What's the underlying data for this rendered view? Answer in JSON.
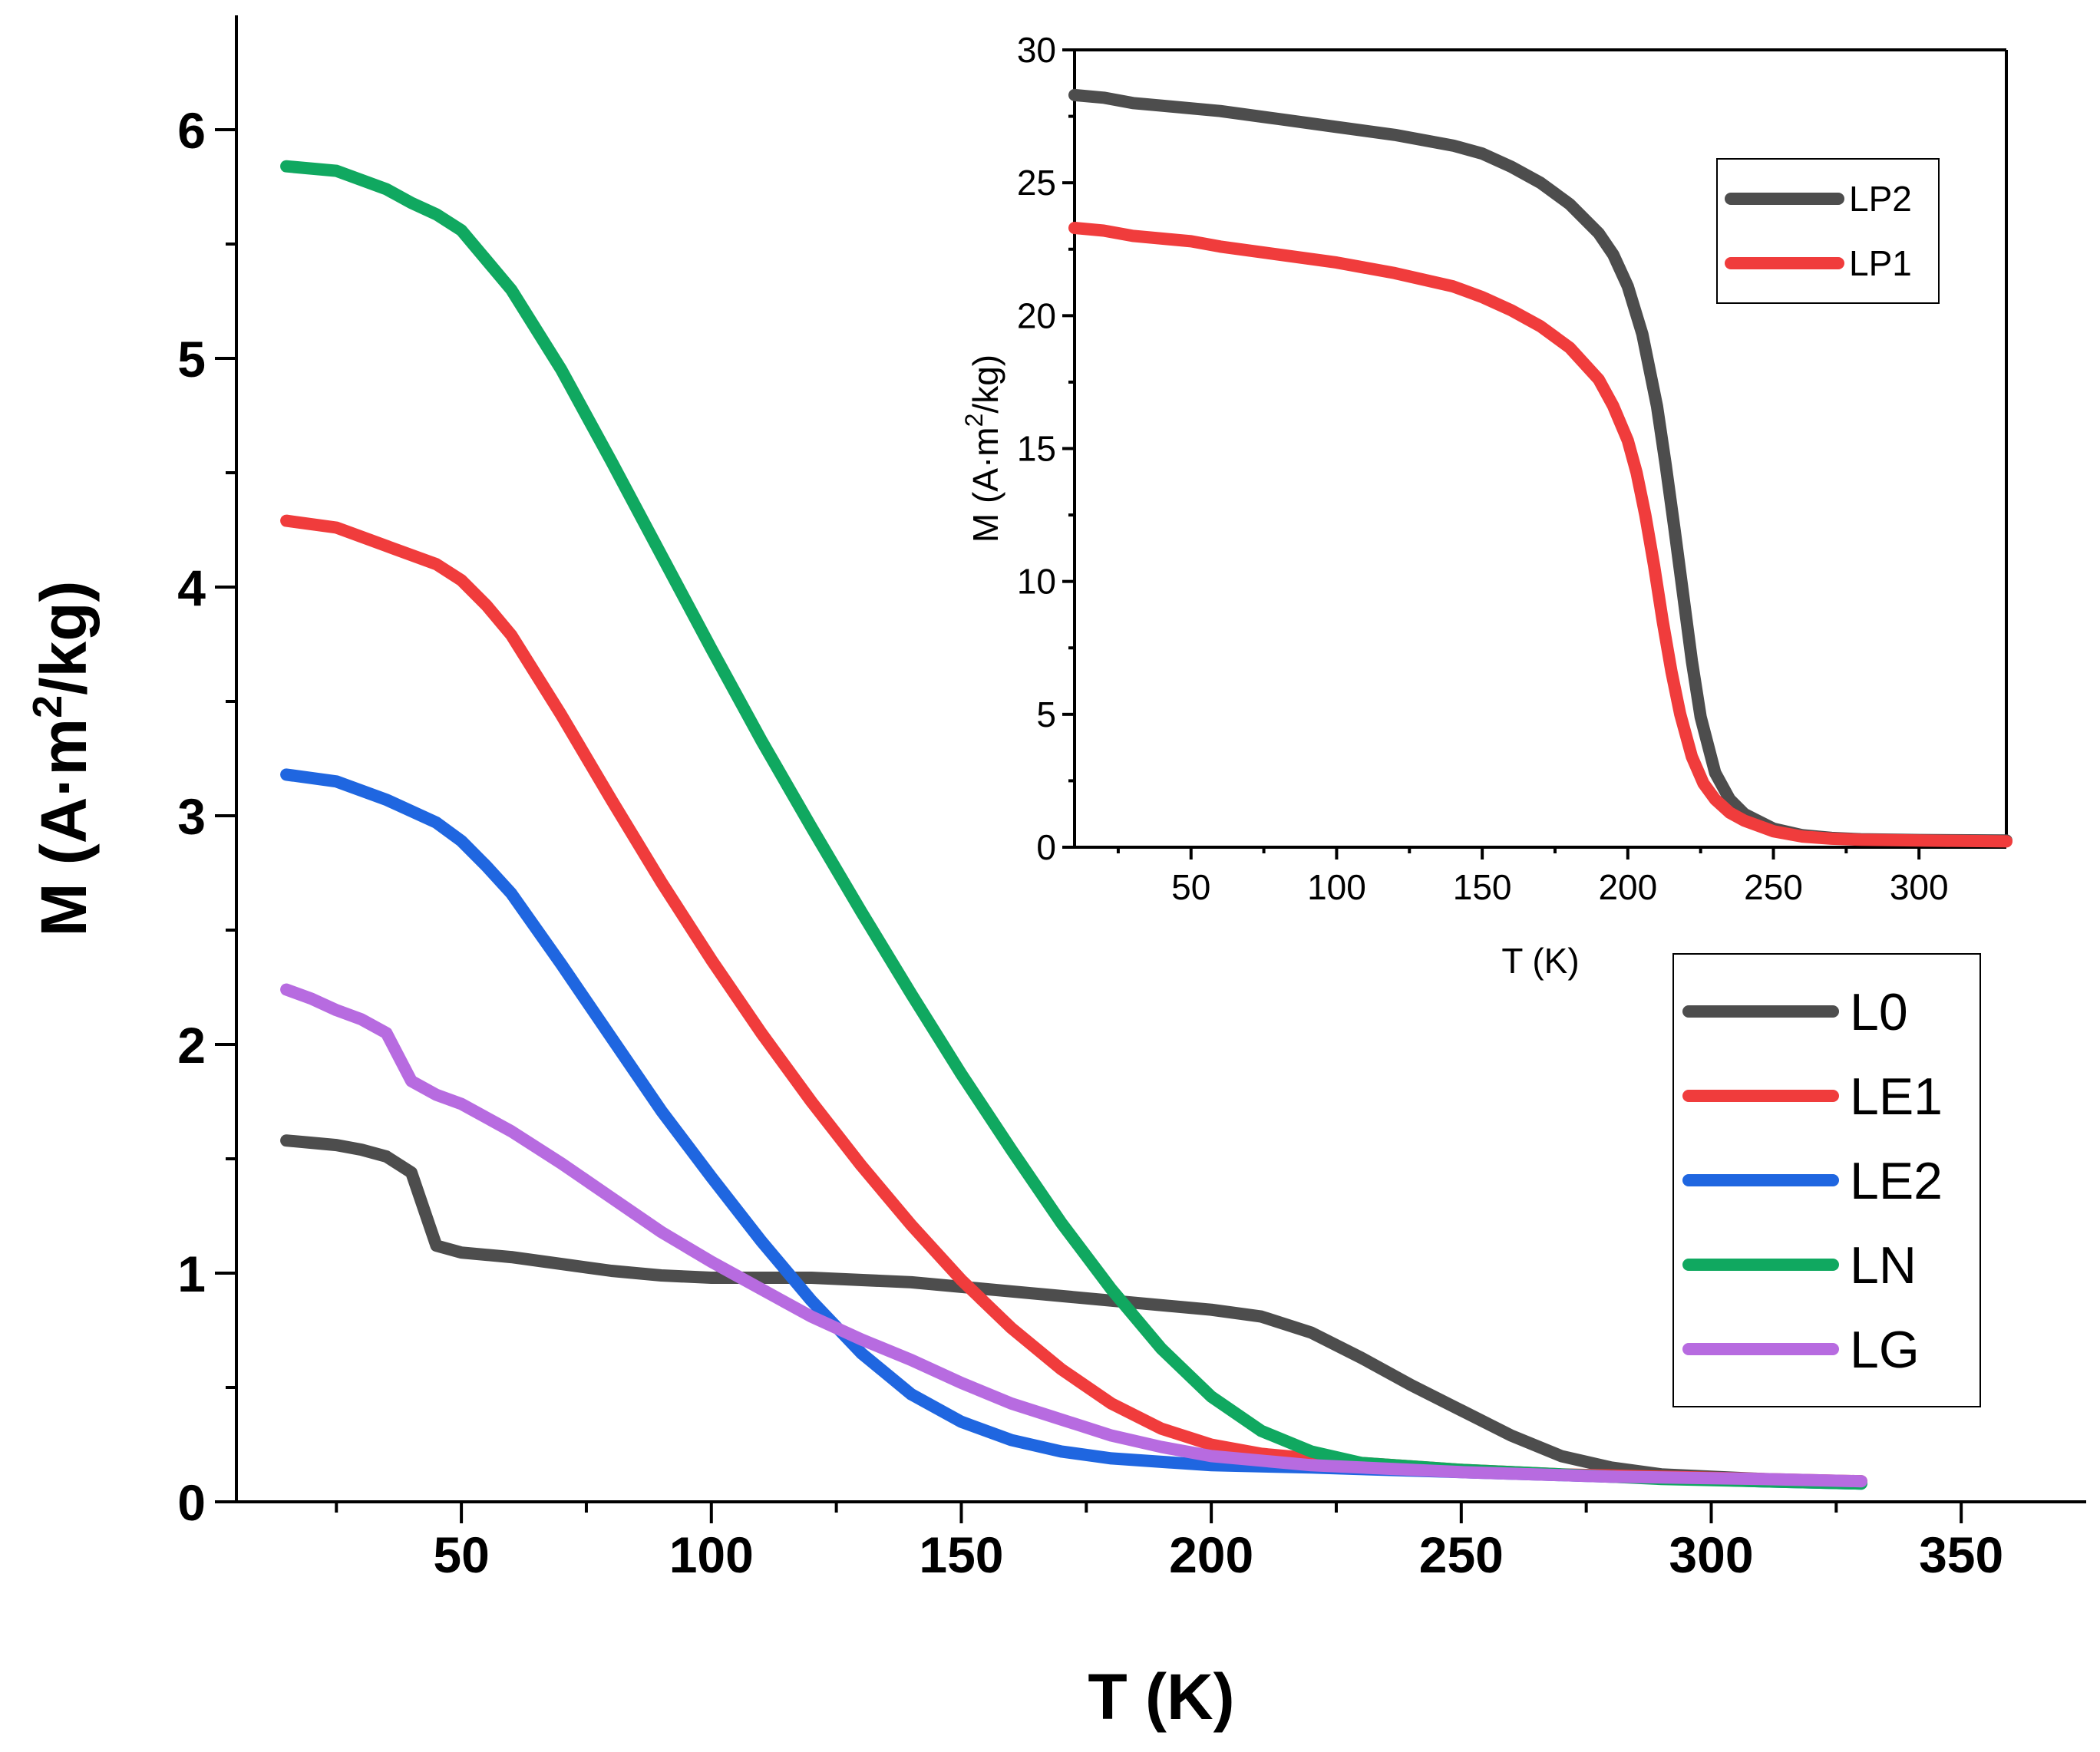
{
  "chart_data": [
    {
      "type": "line",
      "xlabel": "T (K)",
      "ylabel": "M (A·m²/kg)",
      "ylabel_parts": {
        "prefix": "M (A·m",
        "sup": "2",
        "suffix": "/kg)"
      },
      "xlim": [
        5,
        375
      ],
      "ylim": [
        0,
        6.5
      ],
      "xticks": [
        50,
        100,
        150,
        200,
        250,
        300,
        350
      ],
      "yticks": [
        0,
        1,
        2,
        3,
        4,
        5,
        6
      ],
      "legend_position": "lower-right",
      "series": [
        {
          "name": "L0",
          "color": "#4d4d4d",
          "x": [
            15,
            20,
            25,
            30,
            35,
            40,
            45,
            50,
            60,
            70,
            80,
            90,
            100,
            120,
            140,
            160,
            180,
            200,
            210,
            220,
            230,
            240,
            250,
            260,
            270,
            280,
            290,
            300,
            310,
            320,
            330
          ],
          "y": [
            1.58,
            1.57,
            1.56,
            1.54,
            1.51,
            1.44,
            1.12,
            1.09,
            1.07,
            1.04,
            1.01,
            0.99,
            0.98,
            0.98,
            0.96,
            0.92,
            0.88,
            0.84,
            0.81,
            0.74,
            0.63,
            0.51,
            0.4,
            0.29,
            0.2,
            0.15,
            0.12,
            0.11,
            0.1,
            0.09,
            0.09
          ]
        },
        {
          "name": "LE1",
          "color": "#f03c3c",
          "x": [
            15,
            25,
            35,
            45,
            50,
            55,
            60,
            70,
            80,
            90,
            100,
            110,
            120,
            130,
            140,
            150,
            160,
            170,
            180,
            190,
            200,
            210,
            220,
            230,
            250,
            270,
            290,
            310,
            330
          ],
          "y": [
            4.29,
            4.26,
            4.18,
            4.1,
            4.03,
            3.92,
            3.79,
            3.44,
            3.07,
            2.71,
            2.37,
            2.05,
            1.75,
            1.47,
            1.21,
            0.97,
            0.76,
            0.58,
            0.43,
            0.32,
            0.25,
            0.21,
            0.19,
            0.17,
            0.14,
            0.12,
            0.11,
            0.1,
            0.09
          ]
        },
        {
          "name": "LE2",
          "color": "#1f66e0",
          "x": [
            15,
            25,
            35,
            45,
            50,
            55,
            60,
            70,
            80,
            90,
            100,
            110,
            120,
            130,
            140,
            150,
            160,
            170,
            180,
            200,
            220,
            250,
            280,
            310,
            330
          ],
          "y": [
            3.18,
            3.15,
            3.07,
            2.97,
            2.89,
            2.78,
            2.66,
            2.35,
            2.03,
            1.71,
            1.42,
            1.14,
            0.88,
            0.65,
            0.47,
            0.35,
            0.27,
            0.22,
            0.19,
            0.16,
            0.15,
            0.13,
            0.11,
            0.09,
            0.08
          ]
        },
        {
          "name": "LN",
          "color": "#10a860",
          "x": [
            15,
            25,
            35,
            40,
            45,
            50,
            60,
            70,
            80,
            90,
            100,
            110,
            120,
            130,
            140,
            150,
            160,
            170,
            180,
            190,
            200,
            210,
            220,
            230,
            250,
            270,
            290,
            310,
            330
          ],
          "y": [
            5.84,
            5.82,
            5.74,
            5.68,
            5.63,
            5.56,
            5.3,
            4.95,
            4.55,
            4.14,
            3.73,
            3.33,
            2.95,
            2.58,
            2.22,
            1.87,
            1.54,
            1.22,
            0.93,
            0.67,
            0.46,
            0.31,
            0.22,
            0.17,
            0.14,
            0.12,
            0.1,
            0.09,
            0.08
          ]
        },
        {
          "name": "LG",
          "color": "#b76be0",
          "x": [
            15,
            20,
            25,
            30,
            35,
            40,
            45,
            50,
            55,
            60,
            70,
            80,
            90,
            100,
            110,
            120,
            130,
            140,
            150,
            160,
            170,
            180,
            190,
            200,
            220,
            250,
            280,
            310,
            330
          ],
          "y": [
            2.24,
            2.2,
            2.15,
            2.11,
            2.05,
            1.84,
            1.78,
            1.74,
            1.68,
            1.62,
            1.48,
            1.33,
            1.18,
            1.05,
            0.93,
            0.81,
            0.71,
            0.62,
            0.52,
            0.43,
            0.36,
            0.29,
            0.24,
            0.2,
            0.16,
            0.13,
            0.11,
            0.1,
            0.09
          ]
        }
      ]
    },
    {
      "type": "line",
      "xlabel": "T (K)",
      "ylabel": "M (A·m²/kg)",
      "ylabel_parts": {
        "prefix": "M (A·m",
        "sup": "2",
        "suffix": "/kg)"
      },
      "xlim": [
        10,
        330
      ],
      "ylim": [
        0,
        30
      ],
      "xticks": [
        50,
        100,
        150,
        200,
        250,
        300
      ],
      "yticks": [
        0,
        5,
        10,
        15,
        20,
        25,
        30
      ],
      "legend_position": "top-right",
      "series": [
        {
          "name": "LP2",
          "color": "#4d4d4d",
          "x": [
            10,
            20,
            30,
            40,
            50,
            60,
            80,
            100,
            120,
            140,
            150,
            160,
            170,
            180,
            190,
            195,
            200,
            205,
            210,
            213,
            216,
            219,
            222,
            225,
            230,
            235,
            240,
            250,
            260,
            270,
            280,
            300,
            330
          ],
          "y": [
            28.3,
            28.2,
            28.0,
            27.9,
            27.8,
            27.7,
            27.4,
            27.1,
            26.8,
            26.4,
            26.1,
            25.6,
            25.0,
            24.2,
            23.1,
            22.3,
            21.1,
            19.3,
            16.6,
            14.4,
            12.0,
            9.5,
            7.0,
            4.9,
            2.8,
            1.8,
            1.25,
            0.7,
            0.45,
            0.35,
            0.3,
            0.27,
            0.25
          ]
        },
        {
          "name": "LP1",
          "color": "#f03c3c",
          "x": [
            10,
            20,
            30,
            40,
            50,
            60,
            80,
            100,
            120,
            140,
            150,
            160,
            170,
            180,
            190,
            195,
            200,
            203,
            206,
            209,
            212,
            215,
            218,
            222,
            226,
            230,
            235,
            240,
            250,
            260,
            270,
            280,
            300,
            330
          ],
          "y": [
            23.3,
            23.2,
            23.0,
            22.9,
            22.8,
            22.6,
            22.3,
            22.0,
            21.6,
            21.1,
            20.7,
            20.2,
            19.6,
            18.8,
            17.6,
            16.6,
            15.3,
            14.1,
            12.5,
            10.6,
            8.5,
            6.6,
            5.0,
            3.4,
            2.4,
            1.8,
            1.3,
            1.0,
            0.6,
            0.4,
            0.32,
            0.28,
            0.25,
            0.22
          ]
        }
      ]
    }
  ]
}
